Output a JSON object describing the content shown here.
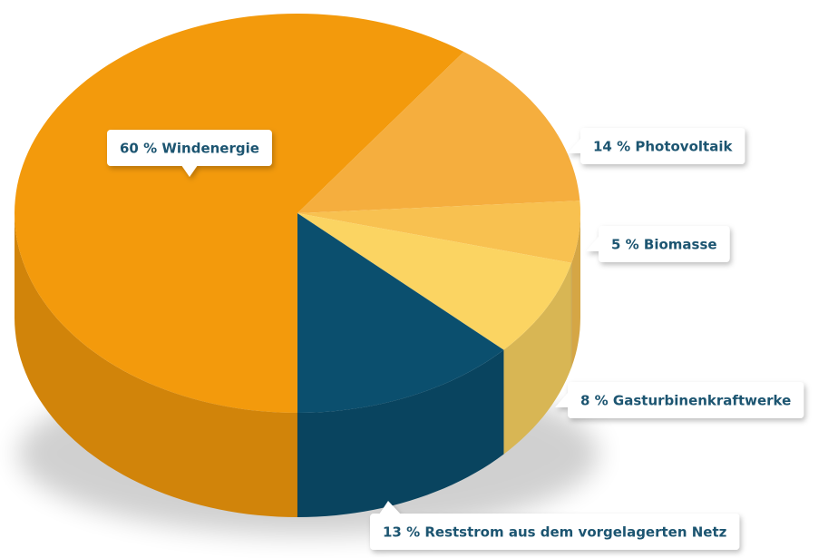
{
  "chart_data": {
    "type": "pie",
    "values": [
      60,
      14,
      5,
      8,
      13
    ],
    "value_labels": [
      "60 % Windenergie",
      "14 % Photovoltaik",
      "5 % Biomasse",
      "8 % Gasturbinenkraftwerke",
      "13 % Reststrom aus dem vorgelagerten Netz"
    ],
    "colors": [
      "#f39a0c",
      "#f5ae3e",
      "#f8c150",
      "#fbd462",
      "#0b4f6e"
    ]
  }
}
